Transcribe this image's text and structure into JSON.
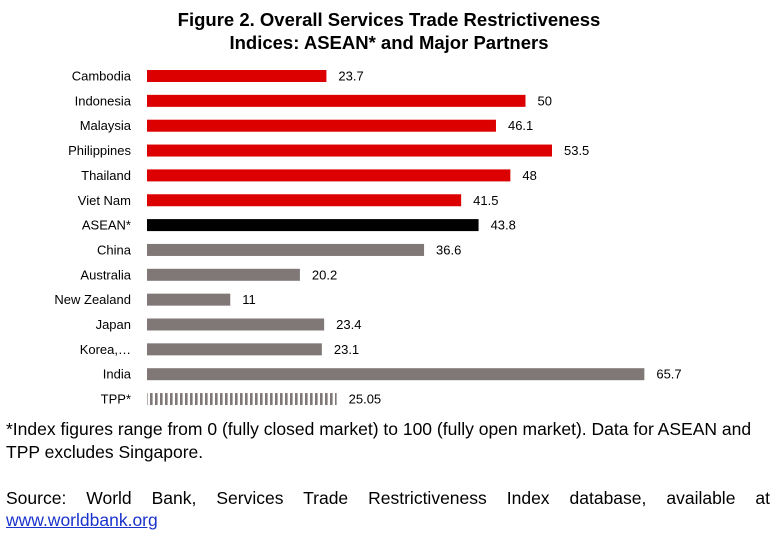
{
  "title_line1": "Figure 2. Overall Services Trade Restrictiveness",
  "title_line2": "Indices: ASEAN* and Major Partners",
  "note": "*Index figures range from 0 (fully closed market) to 100 (fully open market). Data for ASEAN and TPP excludes Singapore.",
  "source_text": "Source: World Bank, Services Trade Restrictiveness Index database, available at",
  "source_link": "www.worldbank.org",
  "colors": {
    "asean_member": "#dd0000",
    "asean_aggregate": "#000000",
    "partner": "#7f7877",
    "tpp_stripe": "#7f7877"
  },
  "chart_data": {
    "type": "bar",
    "orientation": "horizontal",
    "title": "Figure 2. Overall Services Trade Restrictiveness Indices: ASEAN* and Major Partners",
    "categories": [
      "Cambodia",
      "Indonesia",
      "Malaysia",
      "Philippines",
      "Thailand",
      "Viet Nam",
      "ASEAN*",
      "China",
      "Australia",
      "New Zealand",
      "Japan",
      "Korea,…",
      "India",
      "TPP*"
    ],
    "values": [
      23.7,
      50,
      46.1,
      53.5,
      48,
      41.5,
      43.8,
      36.6,
      20.2,
      11,
      23.4,
      23.1,
      65.7,
      25.05
    ],
    "value_labels": [
      "23.7",
      "50",
      "46.1",
      "53.5",
      "48",
      "41.5",
      "43.8",
      "36.6",
      "20.2",
      "11",
      "23.4",
      "23.1",
      "65.7",
      "25.05"
    ],
    "bar_groups": [
      "asean_member",
      "asean_member",
      "asean_member",
      "asean_member",
      "asean_member",
      "asean_member",
      "asean_aggregate",
      "partner",
      "partner",
      "partner",
      "partner",
      "partner",
      "partner",
      "tpp_stripe"
    ],
    "xlim": [
      0,
      100
    ],
    "grid": false,
    "axes_visible": false,
    "legend": "none"
  }
}
